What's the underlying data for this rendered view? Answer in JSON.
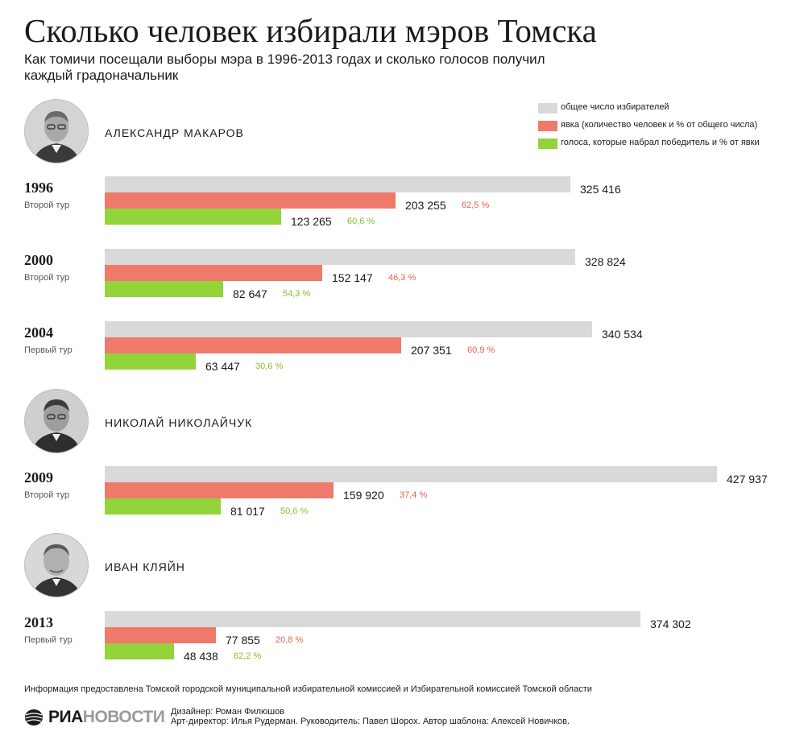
{
  "title": "Сколько человек избирали мэров Томска",
  "subtitle": "Как томичи посещали выборы мэра в 1996-2013 годах и сколько голосов получил каждый градоначальник",
  "legend": [
    {
      "label": "общее число избирателей",
      "color": "#d9d9d9"
    },
    {
      "label": "явка (количество человек и % от общего числа)",
      "color": "#ef7a6b"
    },
    {
      "label": "голоса, которые набрал победитель и % от явки",
      "color": "#92d43a"
    }
  ],
  "people": [
    {
      "name": "АЛЕКСАНДР МАКАРОВ",
      "portrait": "portrait-photo"
    },
    {
      "name": "НИКОЛАЙ НИКОЛАЙЧУК",
      "portrait": "portrait-photo"
    },
    {
      "name": "ИВАН КЛЯЙН",
      "portrait": "portrait-photo"
    }
  ],
  "colors": {
    "total": "#d9d9d9",
    "turnout": "#ef7a6b",
    "winner": "#92d43a",
    "turnout_pct": "#e8624f",
    "winner_pct": "#7fc22a"
  },
  "chart_data": {
    "type": "bar",
    "orientation": "horizontal",
    "categories": [
      "1996",
      "2000",
      "2004",
      "2009",
      "2013"
    ],
    "rounds": [
      "Второй тур",
      "Второй тур",
      "Первый тур",
      "Второй тур",
      "Первый тур"
    ],
    "series": [
      {
        "name": "общее число избирателей",
        "values": [
          325416,
          328824,
          340534,
          427937,
          374302
        ],
        "labels": [
          "325 416",
          "328 824",
          "340 534",
          "427 937",
          "374 302"
        ]
      },
      {
        "name": "явка (количество человек и % от общего числа)",
        "values": [
          203255,
          152147,
          207351,
          159920,
          77855
        ],
        "labels": [
          "203 255",
          "152 147",
          "207 351",
          "159 920",
          "77 855"
        ],
        "percent_labels": [
          "62,5 %",
          "46,3 %",
          "60,9 %",
          "37,4 %",
          "20,8 %"
        ]
      },
      {
        "name": "голоса, которые набрал победитель и % от явки",
        "values": [
          123265,
          82647,
          63447,
          81017,
          48438
        ],
        "labels": [
          "123 265",
          "82 647",
          "63 447",
          "81 017",
          "48 438"
        ],
        "percent_labels": [
          "60,6 %",
          "54,3 %",
          "30,6 %",
          "50,6 %",
          "62,2 %"
        ]
      }
    ],
    "legend_position": "top-right",
    "grid": false
  },
  "footer": {
    "source": "Информация предоставлена Томской городской муниципальной избирательной комиссией и Избирательной комиссией Томской области",
    "logo_ria": "РИА",
    "logo_news": "НОВОСТИ",
    "designer": "Дизайнер: Роман Филюшов",
    "credits": "Арт-директор: Илья Рудерман. Руководитель: Павел Шорох. Автор шаблона: Алексей Новичков."
  }
}
